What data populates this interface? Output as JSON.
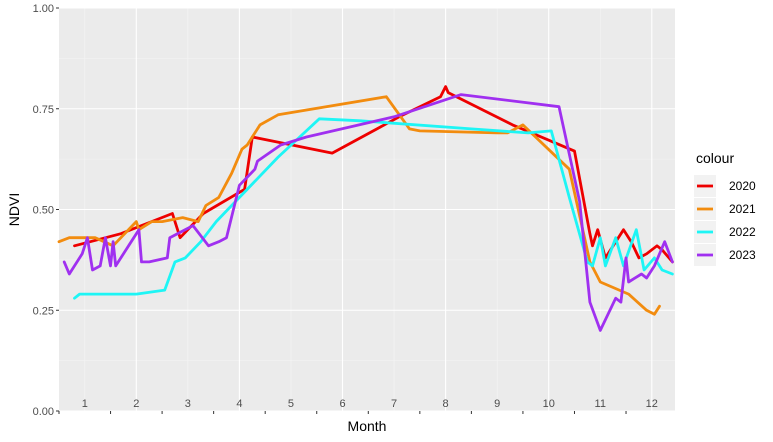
{
  "chart_data": {
    "type": "line",
    "title": "",
    "xlabel": "Month",
    "ylabel": "NDVI",
    "xlim": [
      0.5,
      12.45
    ],
    "ylim": [
      0,
      1
    ],
    "y_ticks": [
      "0.00",
      "0.25",
      "0.50",
      "0.75",
      "1.00"
    ],
    "x_categories": [
      "1",
      "2",
      "3",
      "4",
      "5",
      "6",
      "7",
      "8",
      "9",
      "10",
      "11",
      "12"
    ],
    "grid": true,
    "legend": {
      "title": "colour",
      "position": "right"
    },
    "series": [
      {
        "name": "2020",
        "color": "#ee0000",
        "points": [
          [
            0.8,
            0.41
          ],
          [
            1.7,
            0.44
          ],
          [
            2.7,
            0.49
          ],
          [
            2.85,
            0.43
          ],
          [
            3.3,
            0.49
          ],
          [
            4.1,
            0.55
          ],
          [
            4.25,
            0.68
          ],
          [
            5.8,
            0.64
          ],
          [
            7.1,
            0.73
          ],
          [
            7.9,
            0.78
          ],
          [
            8.0,
            0.805
          ],
          [
            8.05,
            0.79
          ],
          [
            9.3,
            0.71
          ],
          [
            10.5,
            0.645
          ],
          [
            10.8,
            0.44
          ],
          [
            10.85,
            0.41
          ],
          [
            10.95,
            0.45
          ],
          [
            11.1,
            0.38
          ],
          [
            11.45,
            0.45
          ],
          [
            11.6,
            0.42
          ],
          [
            11.75,
            0.38
          ],
          [
            11.9,
            0.39
          ],
          [
            12.1,
            0.41
          ],
          [
            12.2,
            0.4
          ],
          [
            12.4,
            0.37
          ]
        ]
      },
      {
        "name": "2021",
        "color": "#f28c0f",
        "points": [
          [
            0.5,
            0.42
          ],
          [
            0.7,
            0.43
          ],
          [
            1.2,
            0.43
          ],
          [
            1.55,
            0.41
          ],
          [
            2.0,
            0.47
          ],
          [
            2.05,
            0.45
          ],
          [
            2.3,
            0.47
          ],
          [
            2.5,
            0.47
          ],
          [
            2.9,
            0.48
          ],
          [
            3.2,
            0.47
          ],
          [
            3.35,
            0.51
          ],
          [
            3.6,
            0.53
          ],
          [
            3.85,
            0.59
          ],
          [
            4.05,
            0.65
          ],
          [
            4.15,
            0.66
          ],
          [
            4.4,
            0.71
          ],
          [
            4.75,
            0.735
          ],
          [
            6.85,
            0.78
          ],
          [
            7.3,
            0.7
          ],
          [
            7.5,
            0.695
          ],
          [
            9.0,
            0.69
          ],
          [
            9.2,
            0.69
          ],
          [
            9.5,
            0.71
          ],
          [
            10.4,
            0.6
          ],
          [
            10.8,
            0.37
          ],
          [
            11.0,
            0.32
          ],
          [
            11.55,
            0.29
          ],
          [
            11.9,
            0.25
          ],
          [
            12.05,
            0.24
          ],
          [
            12.15,
            0.26
          ]
        ]
      },
      {
        "name": "2022",
        "color": "#1ef5f5",
        "points": [
          [
            0.8,
            0.28
          ],
          [
            0.9,
            0.29
          ],
          [
            2.0,
            0.29
          ],
          [
            2.55,
            0.3
          ],
          [
            2.75,
            0.37
          ],
          [
            2.95,
            0.38
          ],
          [
            3.25,
            0.42
          ],
          [
            3.55,
            0.47
          ],
          [
            4.75,
            0.63
          ],
          [
            5.55,
            0.725
          ],
          [
            6.35,
            0.72
          ],
          [
            8.5,
            0.7
          ],
          [
            9.6,
            0.69
          ],
          [
            10.05,
            0.695
          ],
          [
            10.4,
            0.53
          ],
          [
            10.75,
            0.37
          ],
          [
            10.85,
            0.36
          ],
          [
            11.0,
            0.43
          ],
          [
            11.1,
            0.36
          ],
          [
            11.3,
            0.43
          ],
          [
            11.45,
            0.36
          ],
          [
            11.7,
            0.45
          ],
          [
            11.85,
            0.35
          ],
          [
            12.05,
            0.38
          ],
          [
            12.2,
            0.35
          ],
          [
            12.4,
            0.34
          ]
        ]
      },
      {
        "name": "2023",
        "color": "#a030f0",
        "points": [
          [
            0.6,
            0.37
          ],
          [
            0.7,
            0.34
          ],
          [
            0.95,
            0.39
          ],
          [
            1.05,
            0.43
          ],
          [
            1.15,
            0.35
          ],
          [
            1.3,
            0.36
          ],
          [
            1.4,
            0.43
          ],
          [
            1.5,
            0.36
          ],
          [
            1.55,
            0.42
          ],
          [
            1.6,
            0.36
          ],
          [
            2.05,
            0.45
          ],
          [
            2.1,
            0.37
          ],
          [
            2.25,
            0.37
          ],
          [
            2.6,
            0.38
          ],
          [
            2.65,
            0.43
          ],
          [
            3.1,
            0.46
          ],
          [
            3.4,
            0.41
          ],
          [
            3.6,
            0.42
          ],
          [
            3.75,
            0.43
          ],
          [
            4.0,
            0.56
          ],
          [
            4.3,
            0.6
          ],
          [
            4.35,
            0.62
          ],
          [
            4.8,
            0.66
          ],
          [
            5.3,
            0.68
          ],
          [
            7.0,
            0.73
          ],
          [
            8.3,
            0.785
          ],
          [
            10.2,
            0.755
          ],
          [
            10.6,
            0.52
          ],
          [
            10.8,
            0.27
          ],
          [
            11.0,
            0.2
          ],
          [
            11.3,
            0.28
          ],
          [
            11.4,
            0.27
          ],
          [
            11.5,
            0.38
          ],
          [
            11.55,
            0.32
          ],
          [
            11.8,
            0.34
          ],
          [
            11.9,
            0.33
          ],
          [
            12.05,
            0.36
          ],
          [
            12.25,
            0.42
          ],
          [
            12.4,
            0.37
          ]
        ]
      }
    ]
  }
}
